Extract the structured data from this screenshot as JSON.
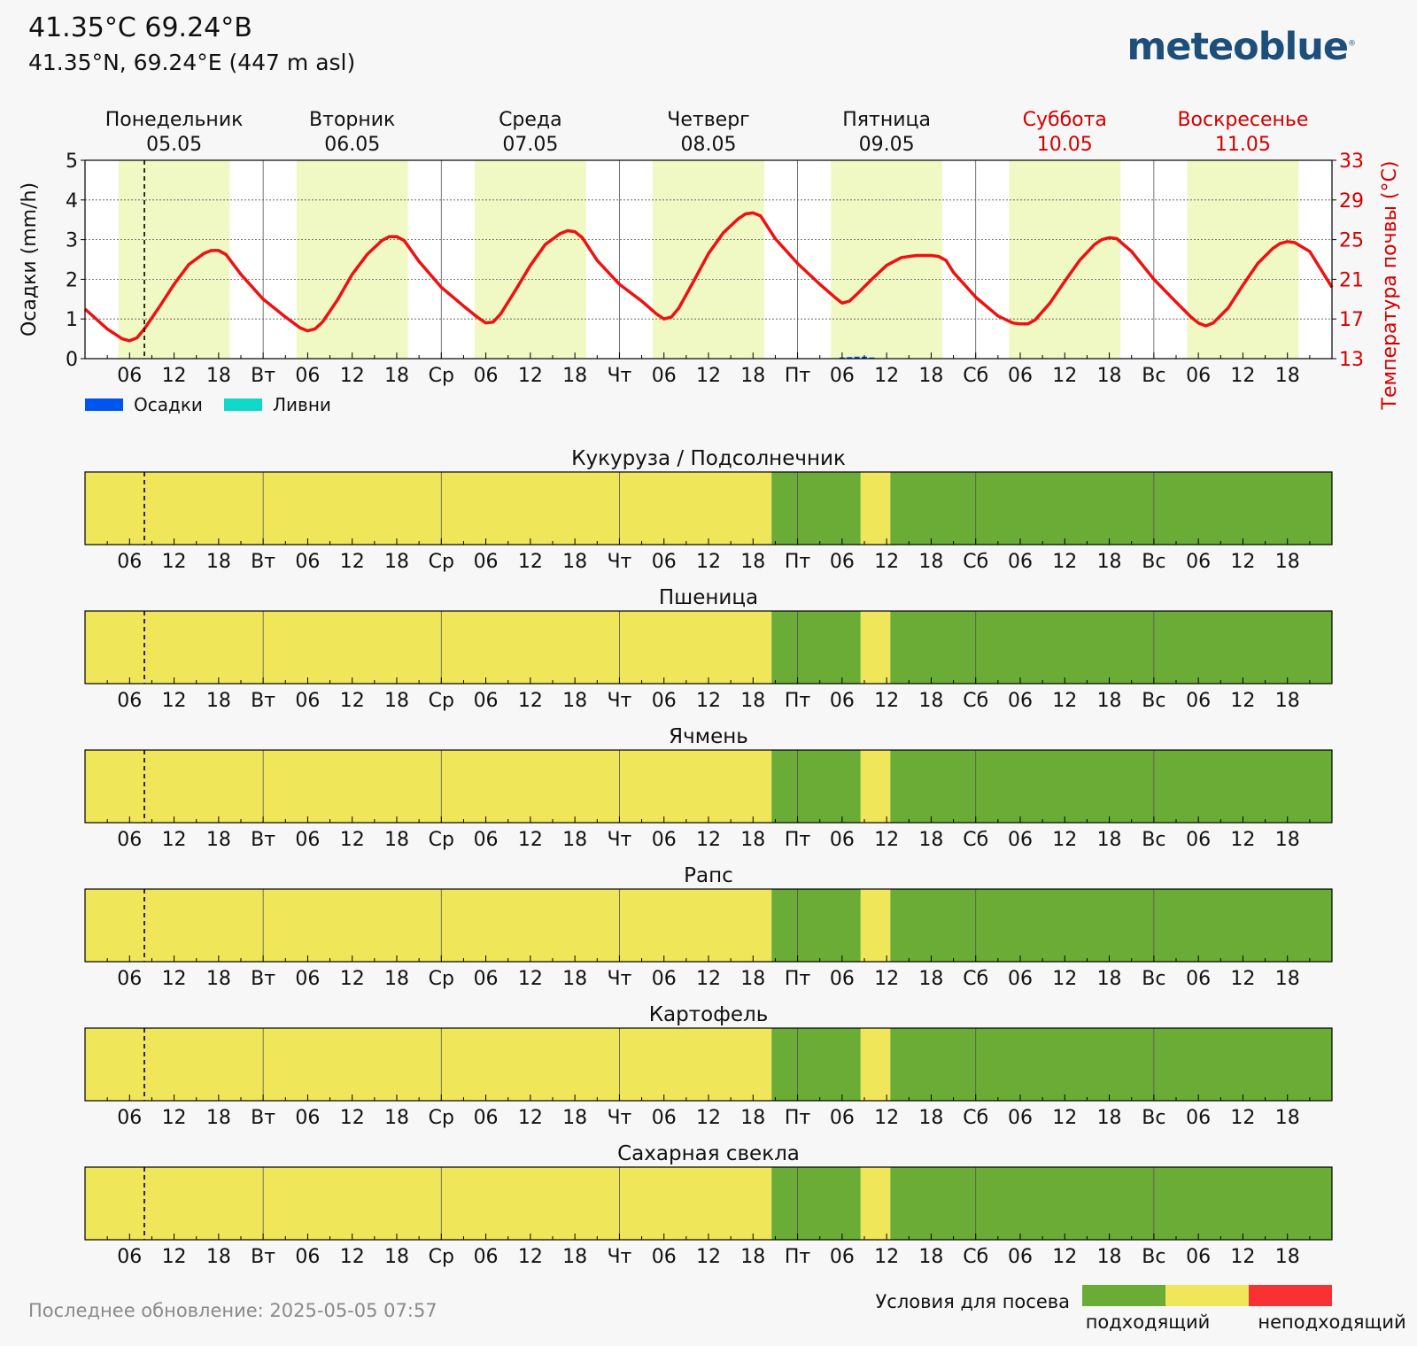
{
  "header": {
    "title": "41.35°C 69.24°B",
    "subtitle": "41.35°N, 69.24°E (447 m asl)",
    "logo": "meteoblue",
    "logo_reg": "®"
  },
  "footer": {
    "updated": "Последнее обновление: 2025-05-05 07:57"
  },
  "colors": {
    "suitable": "#6aac36",
    "moderate": "#f0e65a",
    "unsuitable": "#f83232",
    "temperature": "#ee1111",
    "daylight": "#f0f8c4",
    "precipitation": "#0055ee",
    "showers": "#11d8c8"
  },
  "chart_data": [
    {
      "type": "line",
      "days": [
        {
          "name": "Понедельник",
          "date": "05.05",
          "weekend": false
        },
        {
          "name": "Вторник",
          "date": "06.05",
          "weekend": false
        },
        {
          "name": "Среда",
          "date": "07.05",
          "weekend": false
        },
        {
          "name": "Четверг",
          "date": "08.05",
          "weekend": false
        },
        {
          "name": "Пятница",
          "date": "09.05",
          "weekend": false
        },
        {
          "name": "Суббота",
          "date": "10.05",
          "weekend": true
        },
        {
          "name": "Воскресенье",
          "date": "11.05",
          "weekend": true
        }
      ],
      "x_tick_labels": [
        "",
        "06",
        "12",
        "18",
        "Вт",
        "06",
        "12",
        "18",
        "Ср",
        "06",
        "12",
        "18",
        "Чт",
        "06",
        "12",
        "18",
        "Пт",
        "06",
        "12",
        "18",
        "Сб",
        "06",
        "12",
        "18",
        "Вс",
        "06",
        "12",
        "18"
      ],
      "now_hour": 8,
      "ylabel_left": "Осадки (mm/h)",
      "ylabel_right": "Температура почвы (°C)",
      "ylim_left": [
        0,
        5
      ],
      "ylim_right": [
        13,
        33
      ],
      "yticks_left": [
        "0",
        "1",
        "2",
        "3",
        "4",
        "5"
      ],
      "yticks_right": [
        "13",
        "17",
        "21",
        "25",
        "29",
        "33"
      ],
      "grid": true,
      "daylight_hours": [
        4.5,
        19.5
      ],
      "legend": {
        "position": "bottom-left",
        "entries": [
          {
            "name": "Осадки",
            "color": "#0055ee"
          },
          {
            "name": "Ливни",
            "color": "#11d8c8"
          }
        ]
      },
      "temperature": {
        "hours": [
          0,
          3,
          5,
          6,
          7,
          8,
          10,
          12,
          14,
          16,
          17,
          18,
          19,
          21,
          24,
          27,
          29,
          30,
          31,
          32,
          34,
          36,
          38,
          40,
          41,
          42,
          43,
          45,
          48,
          51,
          53,
          54,
          55,
          56,
          58,
          60,
          62,
          64,
          65,
          66,
          67,
          69,
          72,
          75,
          77,
          78,
          79,
          80,
          82,
          84,
          86,
          88,
          89,
          90,
          91,
          93,
          96,
          99,
          101,
          102,
          103,
          104,
          106,
          108,
          110,
          112,
          114,
          115,
          116,
          117,
          120,
          123,
          125,
          126,
          127,
          128,
          130,
          132,
          134,
          136,
          137,
          138,
          139,
          141,
          144,
          147,
          149,
          150,
          151,
          152,
          154,
          156,
          158,
          160,
          161,
          162,
          163,
          165,
          168
        ],
        "values": [
          18.0,
          16.0,
          15.0,
          14.8,
          15.1,
          16.0,
          18.2,
          20.5,
          22.5,
          23.6,
          23.9,
          23.9,
          23.5,
          21.5,
          19.0,
          17.2,
          16.1,
          15.8,
          16.0,
          16.7,
          18.9,
          21.5,
          23.5,
          24.9,
          25.3,
          25.3,
          24.9,
          22.8,
          20.2,
          18.3,
          17.1,
          16.6,
          16.7,
          17.5,
          19.9,
          22.4,
          24.5,
          25.6,
          25.9,
          25.8,
          25.2,
          22.9,
          20.5,
          18.8,
          17.5,
          17.0,
          17.2,
          18.1,
          20.8,
          23.6,
          25.7,
          27.1,
          27.6,
          27.7,
          27.4,
          25.1,
          22.6,
          20.5,
          19.2,
          18.6,
          18.8,
          19.5,
          21.0,
          22.4,
          23.2,
          23.4,
          23.4,
          23.3,
          22.9,
          21.7,
          19.2,
          17.3,
          16.6,
          16.5,
          16.5,
          16.9,
          18.6,
          20.8,
          22.9,
          24.5,
          25.0,
          25.2,
          25.1,
          23.8,
          21.0,
          18.7,
          17.2,
          16.6,
          16.3,
          16.6,
          18.1,
          20.4,
          22.6,
          24.1,
          24.6,
          24.8,
          24.7,
          23.8,
          20.2
        ]
      },
      "precipitation": {
        "hours": [
          102,
          103,
          104,
          105,
          106
        ],
        "values": [
          0.03,
          0.04,
          0.05,
          0.05,
          0.03
        ]
      }
    },
    {
      "type": "heatmap",
      "categories": [
        "Кукуруза / Подсолнечник",
        "Пшеница",
        "Ячмень",
        "Рапс",
        "Картофель",
        "Сахарная свекла"
      ],
      "x_tick_labels": [
        "",
        "06",
        "12",
        "18",
        "Вт",
        "06",
        "12",
        "18",
        "Ср",
        "06",
        "12",
        "18",
        "Чт",
        "06",
        "12",
        "18",
        "Пт",
        "06",
        "12",
        "18",
        "Сб",
        "06",
        "12",
        "18",
        "Вс",
        "06",
        "12",
        "18"
      ],
      "segments": [
        {
          "from_hour": 0,
          "to_hour": 92.5,
          "condition": "moderate"
        },
        {
          "from_hour": 92.5,
          "to_hour": 104.5,
          "condition": "suitable"
        },
        {
          "from_hour": 104.5,
          "to_hour": 108.5,
          "condition": "moderate"
        },
        {
          "from_hour": 108.5,
          "to_hour": 168,
          "condition": "suitable"
        }
      ],
      "legend": {
        "title": "Условия для посева",
        "low_label": "подходящий",
        "high_label": "неподходящий",
        "position": "bottom-right"
      }
    }
  ]
}
